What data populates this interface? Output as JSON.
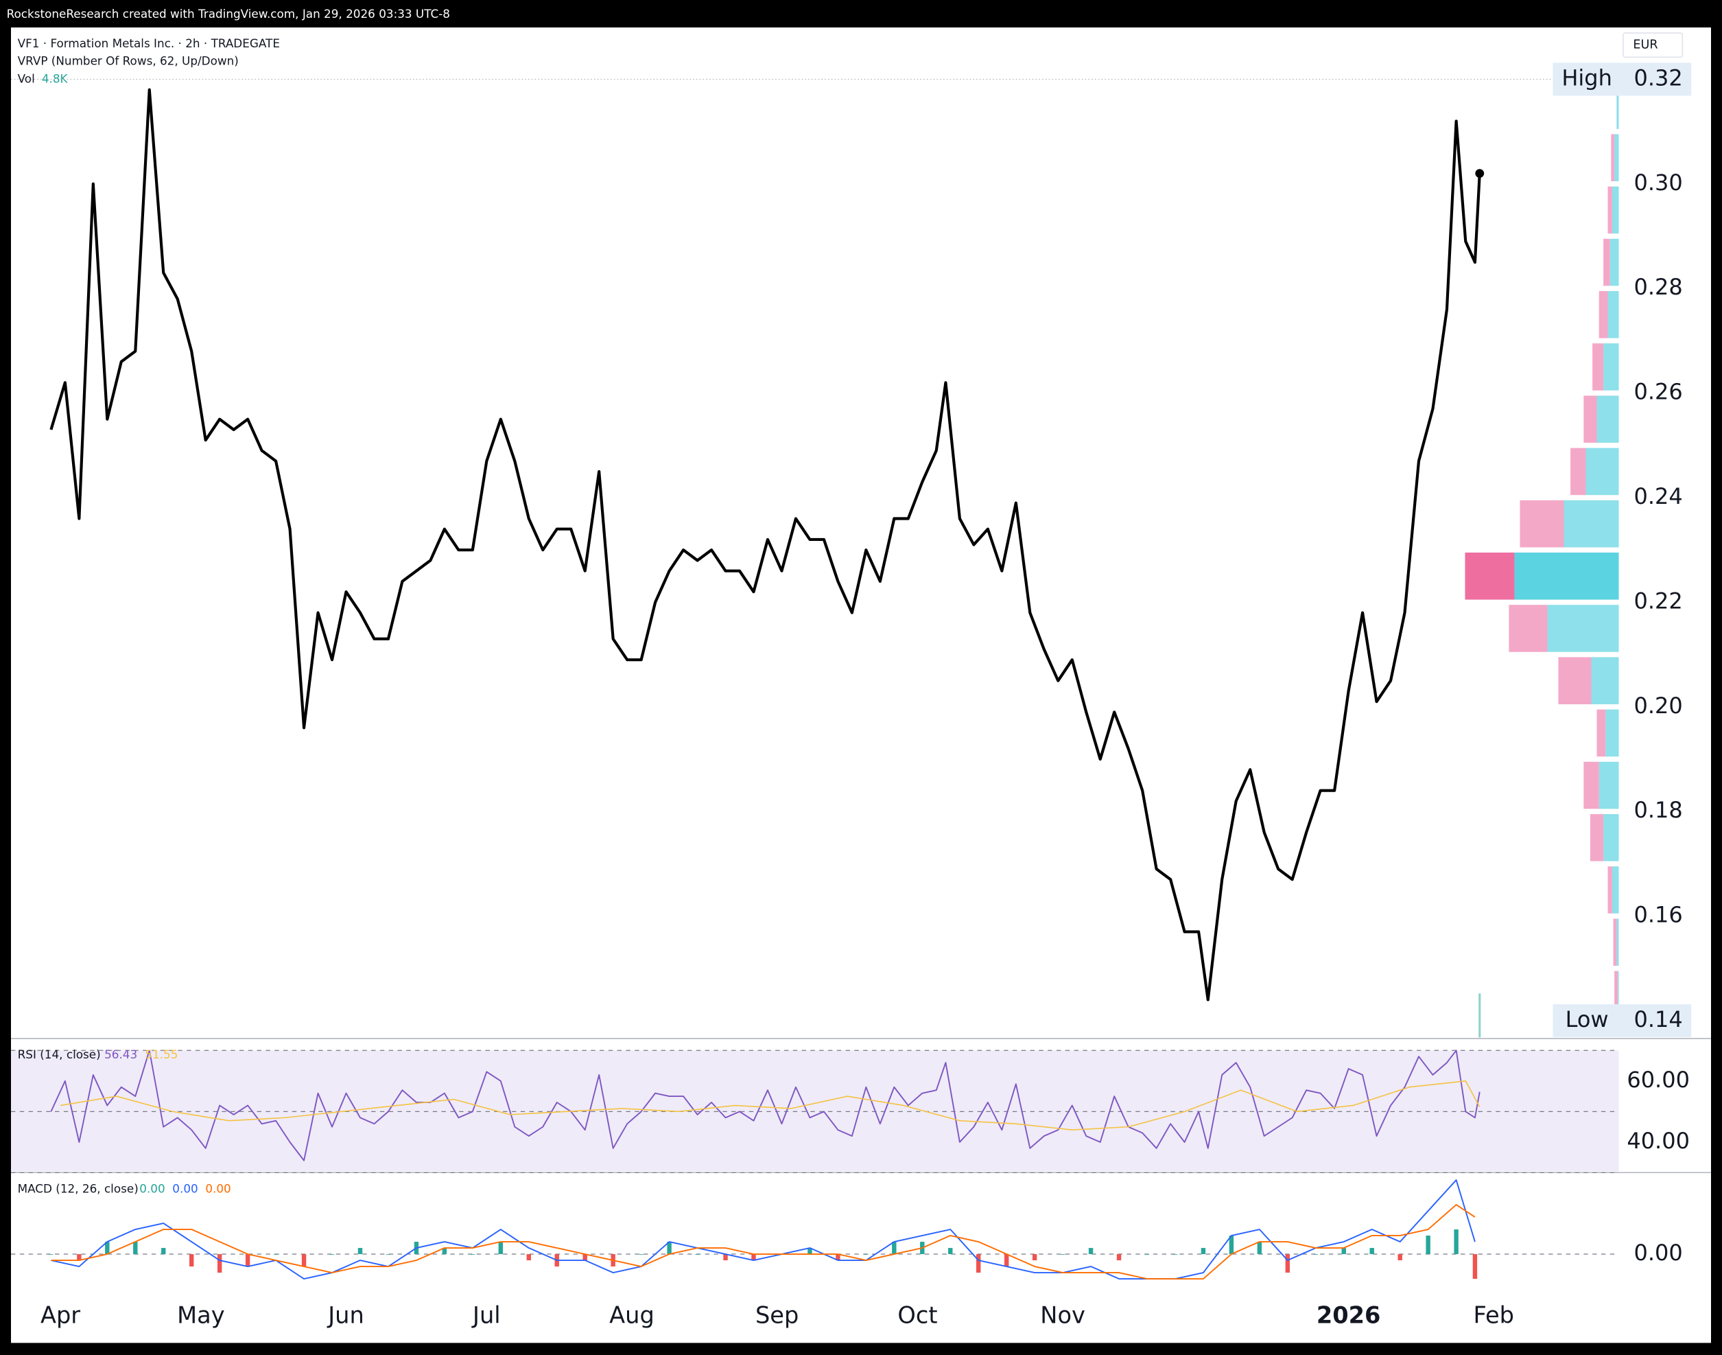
{
  "header": "RockstoneResearch created with TradingView.com, Jan 29, 2026 03:33 UTC-8",
  "chart_data": [
    {
      "type": "line",
      "title": "VF1 · Formation Metals Inc. · 2h · TRADEGATE",
      "currency": "EUR",
      "color": "#000000",
      "xlim": [
        -10.55,
        332.7
      ],
      "ylim": [
        0.1368,
        0.3299
      ],
      "yticks": [
        0.16,
        0.18,
        {
          "value": 0.2,
          "label": "0.20"
        },
        0.22,
        0.24,
        0.26,
        0.28,
        {
          "value": 0.3,
          "label": "0.30"
        }
      ],
      "high": {
        "label": "High",
        "value": 0.32
      },
      "low": {
        "label": "Low",
        "value": 0.14
      },
      "x": [
        -2,
        1,
        4,
        7,
        10,
        13,
        16,
        19,
        22,
        25,
        28,
        31,
        34,
        37,
        40,
        43,
        46,
        49,
        52,
        55,
        58,
        61,
        64,
        67,
        70,
        73,
        76,
        79,
        82,
        85,
        88,
        91,
        94,
        97,
        100,
        103,
        106,
        109,
        112,
        115,
        118,
        121,
        124,
        127,
        130,
        133,
        136,
        139,
        142,
        145,
        148,
        151,
        154,
        157,
        160,
        163,
        166,
        169,
        172,
        175,
        178,
        181,
        184,
        187,
        189,
        192,
        195,
        198,
        201,
        204,
        207,
        210,
        213,
        216,
        219,
        222,
        225,
        228,
        231,
        234,
        237,
        240,
        243,
        245,
        248,
        251,
        254,
        257,
        260,
        263,
        266,
        269,
        272,
        275,
        278,
        281,
        284,
        287,
        290,
        293,
        296,
        298,
        300,
        302,
        303
      ],
      "values": [
        0.253,
        0.262,
        0.236,
        0.3,
        0.255,
        0.266,
        0.268,
        0.318,
        0.283,
        0.278,
        0.268,
        0.251,
        0.255,
        0.253,
        0.255,
        0.249,
        0.247,
        0.234,
        0.196,
        0.218,
        0.209,
        0.222,
        0.218,
        0.213,
        0.213,
        0.224,
        0.226,
        0.228,
        0.234,
        0.23,
        0.23,
        0.247,
        0.255,
        0.247,
        0.236,
        0.23,
        0.234,
        0.234,
        0.226,
        0.245,
        0.213,
        0.209,
        0.209,
        0.22,
        0.226,
        0.23,
        0.228,
        0.23,
        0.226,
        0.226,
        0.222,
        0.232,
        0.226,
        0.236,
        0.232,
        0.232,
        0.224,
        0.218,
        0.23,
        0.224,
        0.236,
        0.236,
        0.243,
        0.249,
        0.262,
        0.236,
        0.231,
        0.234,
        0.226,
        0.239,
        0.218,
        0.211,
        0.205,
        0.209,
        0.199,
        0.19,
        0.199,
        0.192,
        0.184,
        0.169,
        0.167,
        0.157,
        0.157,
        0.144,
        0.167,
        0.182,
        0.188,
        0.176,
        0.169,
        0.167,
        0.176,
        0.184,
        0.184,
        0.203,
        0.218,
        0.201,
        0.205,
        0.218,
        0.247,
        0.257,
        0.276,
        0.312,
        0.289,
        0.285,
        0.302
      ],
      "volume": {
        "name": "Vol",
        "values": [
          4800
        ],
        "value_labels": [
          "4.8K"
        ],
        "color": "#26a69a"
      },
      "volume_profile": {
        "name": "VRVP (Number Of Rows, 62, Up/Down)",
        "prices": [
          0.315,
          0.305,
          0.295,
          0.285,
          0.275,
          0.265,
          0.255,
          0.245,
          0.235,
          0.225,
          0.215,
          0.205,
          0.195,
          0.185,
          0.175,
          0.165,
          0.155,
          0.145
        ],
        "up": [
          2,
          4,
          6,
          8,
          10,
          14,
          20,
          30,
          50,
          95,
          65,
          25,
          12,
          18,
          14,
          6,
          2,
          1
        ],
        "down": [
          0,
          3,
          4,
          6,
          8,
          10,
          12,
          14,
          40,
          45,
          35,
          30,
          8,
          14,
          12,
          4,
          3,
          3
        ],
        "up_color": "#8ee0ea",
        "down_color": "#f4a8c8",
        "poc_index": 9,
        "poc_up_color": "#5cd3e0",
        "poc_down_color": "#ee6f9f"
      }
    },
    {
      "type": "line",
      "title": "RSI (14, close)",
      "xlim": [
        -10.55,
        332.7
      ],
      "ylim": [
        30.4,
        73.9
      ],
      "yticks": [
        {
          "value": 60,
          "label": "60.00"
        },
        {
          "value": 40,
          "label": "40.00"
        }
      ],
      "band": [
        30,
        70
      ],
      "levels": [
        70,
        50,
        30
      ],
      "series": [
        {
          "color": "#7e57c2",
          "values": [
            50,
            60,
            40,
            62,
            52,
            58,
            55,
            70,
            45,
            48,
            44,
            38,
            52,
            49,
            52,
            46,
            47,
            40,
            34,
            56,
            45,
            56,
            48,
            46,
            50,
            57,
            53,
            53,
            56,
            48,
            50,
            63,
            60,
            45,
            42,
            45,
            53,
            50,
            44,
            62,
            38,
            46,
            50,
            56,
            55,
            55,
            49,
            53,
            48,
            50,
            47,
            57,
            46,
            58,
            48,
            50,
            44,
            42,
            58,
            46,
            58,
            52,
            56,
            57,
            66,
            40,
            45,
            53,
            44,
            59,
            38,
            42,
            44,
            52,
            42,
            40,
            55,
            45,
            43,
            38,
            46,
            40,
            50,
            38,
            62,
            66,
            58,
            42,
            45,
            48,
            57,
            56,
            51,
            64,
            62,
            42,
            52,
            58,
            68,
            62,
            66,
            70,
            50,
            48,
            56.43
          ]
        },
        {
          "color": "#f5c242",
          "x": [
            0,
            12,
            24,
            36,
            48,
            60,
            72,
            84,
            96,
            108,
            120,
            132,
            144,
            156,
            168,
            180,
            192,
            204,
            216,
            228,
            240,
            252,
            264,
            276,
            288,
            300,
            303
          ],
          "values": [
            52,
            55,
            50,
            47,
            48,
            50,
            52,
            54,
            49,
            50,
            51,
            50,
            52,
            51,
            55,
            52,
            47,
            46,
            44,
            45,
            50,
            57,
            50,
            52,
            58,
            60,
            51.55
          ]
        }
      ]
    },
    {
      "type": "macd",
      "title": "MACD (12, 26, close)",
      "legend_values": [
        "0.00",
        "0.00",
        "0.00"
      ],
      "xlim": [
        -10.55,
        332.7
      ],
      "ylim": [
        -0.0069,
        0.0132
      ],
      "yticks": [
        {
          "value": 0,
          "label": "0.00"
        }
      ],
      "xticks": [
        {
          "value": 0,
          "label": "Apr"
        },
        {
          "value": 30,
          "label": "May"
        },
        {
          "value": 61,
          "label": "Jun"
        },
        {
          "value": 91,
          "label": "Jul"
        },
        {
          "value": 122,
          "label": "Aug"
        },
        {
          "value": 153,
          "label": "Sep"
        },
        {
          "value": 183,
          "label": "Oct"
        },
        {
          "value": 214,
          "label": "Nov"
        },
        {
          "value": 275,
          "label": "2026",
          "bold": true
        },
        {
          "value": 306,
          "label": "Feb"
        }
      ],
      "x": [
        -2,
        4,
        10,
        16,
        22,
        28,
        34,
        40,
        46,
        52,
        58,
        64,
        70,
        76,
        82,
        88,
        94,
        100,
        106,
        112,
        118,
        124,
        130,
        136,
        142,
        148,
        154,
        160,
        166,
        172,
        178,
        184,
        190,
        196,
        202,
        208,
        214,
        220,
        226,
        232,
        238,
        244,
        250,
        256,
        262,
        268,
        274,
        280,
        286,
        292,
        298,
        302
      ],
      "series": [
        {
          "color": "#2962ff",
          "values": [
            -0.001,
            -0.002,
            0.002,
            0.004,
            0.005,
            0.002,
            -0.001,
            -0.002,
            -0.001,
            -0.004,
            -0.003,
            -0.001,
            -0.002,
            0.001,
            0.002,
            0.001,
            0.004,
            0.001,
            -0.001,
            -0.001,
            -0.003,
            -0.002,
            0.002,
            0.001,
            0,
            -0.001,
            0,
            0.001,
            -0.001,
            -0.001,
            0.002,
            0.003,
            0.004,
            -0.001,
            -0.002,
            -0.003,
            -0.003,
            -0.002,
            -0.004,
            -0.004,
            -0.004,
            -0.003,
            0.003,
            0.004,
            -0.001,
            0.001,
            0.002,
            0.004,
            0.002,
            0.007,
            0.012,
            0.002
          ]
        },
        {
          "color": "#ff6d00",
          "values": [
            -0.001,
            -0.001,
            0,
            0.002,
            0.004,
            0.004,
            0.002,
            0,
            -0.001,
            -0.002,
            -0.003,
            -0.002,
            -0.002,
            -0.001,
            0.001,
            0.001,
            0.002,
            0.002,
            0.001,
            0,
            -0.001,
            -0.002,
            0,
            0.001,
            0.001,
            0,
            0,
            0,
            0,
            -0.001,
            0,
            0.001,
            0.003,
            0.002,
            0,
            -0.002,
            -0.003,
            -0.003,
            -0.003,
            -0.004,
            -0.004,
            -0.004,
            0,
            0.002,
            0.002,
            0.001,
            0.001,
            0.003,
            0.003,
            0.004,
            0.008,
            0.006
          ]
        }
      ],
      "histogram": {
        "up_color": "#26a69a",
        "down_color": "#ef5350",
        "values": [
          0,
          -0.001,
          0.002,
          0.002,
          0.001,
          -0.002,
          -0.003,
          -0.002,
          0,
          -0.002,
          0,
          0.001,
          0,
          0.002,
          0.001,
          0,
          0.002,
          -0.001,
          -0.002,
          -0.001,
          -0.002,
          0,
          0.002,
          0,
          -0.001,
          -0.001,
          0,
          0.001,
          -0.001,
          0,
          0.002,
          0.002,
          0.001,
          -0.003,
          -0.002,
          -0.001,
          0,
          0.001,
          -0.001,
          0,
          0,
          0.001,
          0.003,
          0.002,
          -0.003,
          0,
          0.001,
          0.001,
          -0.001,
          0.003,
          0.004,
          -0.004
        ]
      }
    }
  ]
}
